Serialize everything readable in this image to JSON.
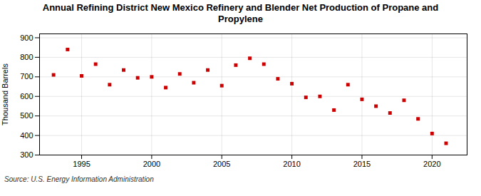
{
  "chart_data": {
    "type": "scatter",
    "title": "Annual Refining District New Mexico Refinery and Blender Net Production of Propane and\nPropylene",
    "ylabel": "Thousand Barrels",
    "source": "Source: U.S. Energy Information Administration",
    "x": [
      1993,
      1994,
      1995,
      1996,
      1997,
      1998,
      1999,
      2000,
      2001,
      2002,
      2003,
      2004,
      2005,
      2006,
      2007,
      2008,
      2009,
      2010,
      2011,
      2012,
      2013,
      2014,
      2015,
      2016,
      2017,
      2018,
      2019,
      2020,
      2021
    ],
    "values": [
      710,
      840,
      705,
      765,
      660,
      735,
      695,
      700,
      645,
      715,
      670,
      735,
      655,
      760,
      795,
      765,
      690,
      665,
      595,
      600,
      530,
      660,
      585,
      550,
      515,
      580,
      485,
      410,
      360
    ],
    "color": "#cc0000",
    "marker": "square",
    "xlim": [
      1992.0,
      2022.5
    ],
    "xticks": [
      1995,
      2000,
      2005,
      2010,
      2015,
      2020
    ],
    "ylim": [
      300,
      920
    ],
    "yticks": [
      300,
      400,
      500,
      600,
      700,
      800,
      900
    ],
    "grid": true
  }
}
